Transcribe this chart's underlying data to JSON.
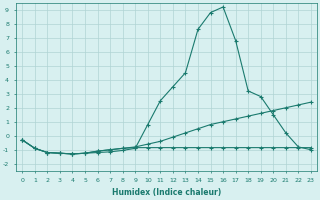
{
  "xlabel": "Humidex (Indice chaleur)",
  "bg_color": "#d8f0f0",
  "grid_color": "#b0d4d4",
  "line_color": "#1a7a6e",
  "xlim": [
    -0.5,
    23.5
  ],
  "ylim": [
    -2.5,
    9.5
  ],
  "xticks": [
    0,
    1,
    2,
    3,
    4,
    5,
    6,
    7,
    8,
    9,
    10,
    11,
    12,
    13,
    14,
    15,
    16,
    17,
    18,
    19,
    20,
    21,
    22,
    23
  ],
  "yticks": [
    -2,
    -1,
    0,
    1,
    2,
    3,
    4,
    5,
    6,
    7,
    8,
    9
  ],
  "line1_x": [
    0,
    1,
    2,
    3,
    4,
    5,
    6,
    7,
    8,
    9,
    10,
    11,
    12,
    13,
    14,
    15,
    16,
    17,
    18,
    19,
    20,
    21,
    22,
    23
  ],
  "line1_y": [
    -0.3,
    -0.9,
    -1.2,
    -1.25,
    -1.3,
    -1.25,
    -1.2,
    -1.15,
    -1.05,
    -0.9,
    0.8,
    2.5,
    3.5,
    4.5,
    7.6,
    8.8,
    9.2,
    6.8,
    3.2,
    2.8,
    1.5,
    0.2,
    -0.8,
    -1.0
  ],
  "line2_x": [
    0,
    1,
    2,
    3,
    4,
    5,
    6,
    7,
    8,
    9,
    10,
    11,
    12,
    13,
    14,
    15,
    16,
    17,
    18,
    19,
    20,
    21,
    22,
    23
  ],
  "line2_y": [
    -0.3,
    -0.9,
    -1.2,
    -1.25,
    -1.3,
    -1.25,
    -1.1,
    -1.0,
    -0.9,
    -0.8,
    -0.6,
    -0.4,
    -0.1,
    0.2,
    0.5,
    0.8,
    1.0,
    1.2,
    1.4,
    1.6,
    1.8,
    2.0,
    2.2,
    2.4
  ],
  "line3_x": [
    0,
    1,
    2,
    3,
    4,
    5,
    6,
    7,
    8,
    9,
    10,
    11,
    12,
    13,
    14,
    15,
    16,
    17,
    18,
    19,
    20,
    21,
    22,
    23
  ],
  "line3_y": [
    -0.3,
    -0.9,
    -1.2,
    -1.25,
    -1.3,
    -1.25,
    -1.1,
    -1.0,
    -0.9,
    -0.85,
    -0.85,
    -0.85,
    -0.85,
    -0.85,
    -0.85,
    -0.85,
    -0.85,
    -0.85,
    -0.85,
    -0.85,
    -0.85,
    -0.85,
    -0.85,
    -0.85
  ]
}
